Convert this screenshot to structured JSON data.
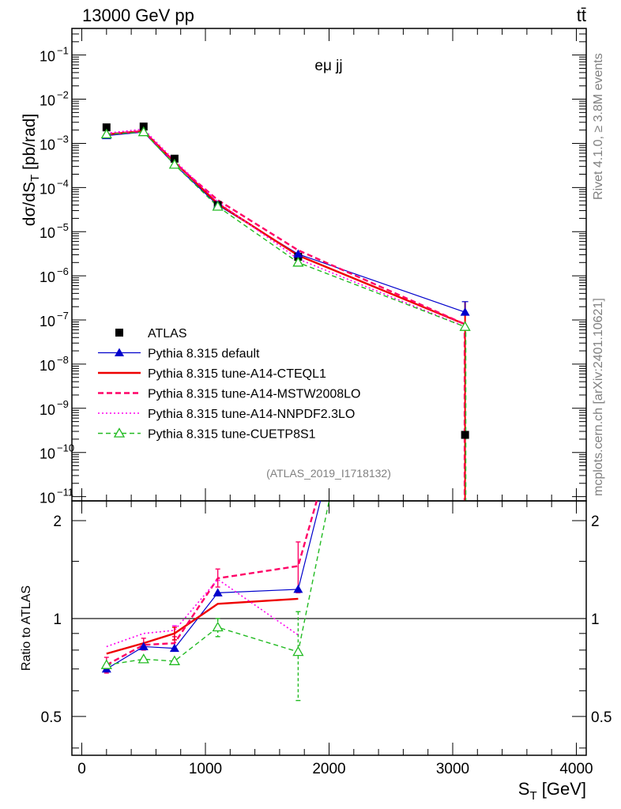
{
  "header": {
    "left": "13000 GeV pp",
    "right": "tt̄"
  },
  "side": {
    "rivet": "Rivet 4.1.0, ≥ 3.8M events",
    "site": "mcplots.cern.ch [arXiv:2401.10621]"
  },
  "chart_data": [
    {
      "type": "line",
      "panel": "main",
      "title": "eμ jj",
      "reference": "(ATLAS_2019_I1718132)",
      "xlabel": "S_T [GeV]",
      "ylabel": "dσ/dS_T [pb/rad]",
      "xlim": [
        -80,
        4080
      ],
      "yscale": "log",
      "ylim": [
        8e-12,
        0.4
      ],
      "x_ticks": [
        0,
        1000,
        2000,
        3000,
        4000
      ],
      "x_tick_labels": [
        "0",
        "1000",
        "2000",
        "3000",
        "4000"
      ],
      "y_tick_exponents": [
        -11,
        -10,
        -9,
        -8,
        -7,
        -6,
        -5,
        -4,
        -3,
        -2,
        -1
      ],
      "y_tick_labels": [
        "10",
        "10",
        "10",
        "10",
        "10",
        "10",
        "10",
        "10",
        "10",
        "10",
        "10"
      ],
      "y_tick_label_exponents": [
        "−11",
        "−10",
        "−9",
        "−8",
        "−7",
        "−6",
        "−5",
        "−4",
        "−3",
        "−2",
        "−1"
      ],
      "x": [
        200,
        500,
        750,
        1100,
        1750,
        3100
      ],
      "series": [
        {
          "name": "ATLAS",
          "style": "data",
          "color": "#000000",
          "values": [
            0.0023,
            0.0024,
            0.00045,
            4e-05,
            2.7e-06,
            2.5e-10
          ]
        },
        {
          "name": "Pythia 8.315 default",
          "style": "solid-triangle",
          "color": "#0000cc",
          "values": [
            0.0015,
            0.0018,
            0.00033,
            4e-05,
            3.1e-06,
            1.5e-07
          ]
        },
        {
          "name": "Pythia 8.315 tune-A14-CTEQL1",
          "style": "solid-thick",
          "color": "#ee0000",
          "values": [
            0.0016,
            0.0019,
            0.00038,
            4.3e-05,
            2.9e-06,
            8e-08
          ]
        },
        {
          "name": "Pythia 8.315 tune-A14-MSTW2008LO",
          "style": "dashed-thick",
          "color": "#ff0066",
          "values": [
            0.0016,
            0.0019,
            0.00036,
            5.2e-05,
            3.8e-06,
            8e-08
          ]
        },
        {
          "name": "Pythia 8.315 tune-A14-NNPDF2.3LO",
          "style": "dotted",
          "color": "#ff00ee",
          "values": [
            0.0017,
            0.0021,
            0.00041,
            4.7e-05,
            2.4e-06,
            7e-08
          ]
        },
        {
          "name": "Pythia 8.315 tune-CUETP8S1",
          "style": "dashed-open-triangle",
          "color": "#22bb22",
          "values": [
            0.0016,
            0.0018,
            0.00033,
            3.7e-05,
            2e-06,
            7e-08
          ]
        }
      ]
    },
    {
      "type": "line",
      "panel": "ratio",
      "ylabel": "Ratio to ATLAS",
      "xlabel": "S_T [GeV]",
      "xlim": [
        -80,
        4080
      ],
      "yscale": "log",
      "ylim": [
        0.38,
        2.3
      ],
      "y_ticks": [
        0.5,
        1,
        2
      ],
      "y_tick_labels": [
        "0.5",
        "1",
        "2"
      ],
      "x": [
        200,
        500,
        750,
        1100,
        1750
      ],
      "series": [
        {
          "name": "Pythia 8.315 default",
          "color": "#0000cc",
          "values": [
            0.7,
            0.82,
            0.81,
            1.2,
            1.23
          ],
          "exit_x": 1930
        },
        {
          "name": "Pythia 8.315 tune-A14-CTEQL1",
          "color": "#ee0000",
          "values": [
            0.78,
            0.84,
            0.9,
            1.11,
            1.15
          ]
        },
        {
          "name": "Pythia 8.315 tune-A14-MSTW2008LO",
          "color": "#ff0066",
          "values": [
            0.72,
            0.83,
            0.84,
            1.33,
            1.45
          ],
          "exit_x": 1900
        },
        {
          "name": "Pythia 8.315 tune-A14-NNPDF2.3LO",
          "color": "#ff00ee",
          "values": [
            0.82,
            0.9,
            0.92,
            1.32,
            0.89
          ]
        },
        {
          "name": "Pythia 8.315 tune-CUETP8S1",
          "color": "#22bb22",
          "values": [
            0.72,
            0.75,
            0.74,
            0.94,
            0.79
          ],
          "exit_x": 2000
        }
      ]
    }
  ]
}
